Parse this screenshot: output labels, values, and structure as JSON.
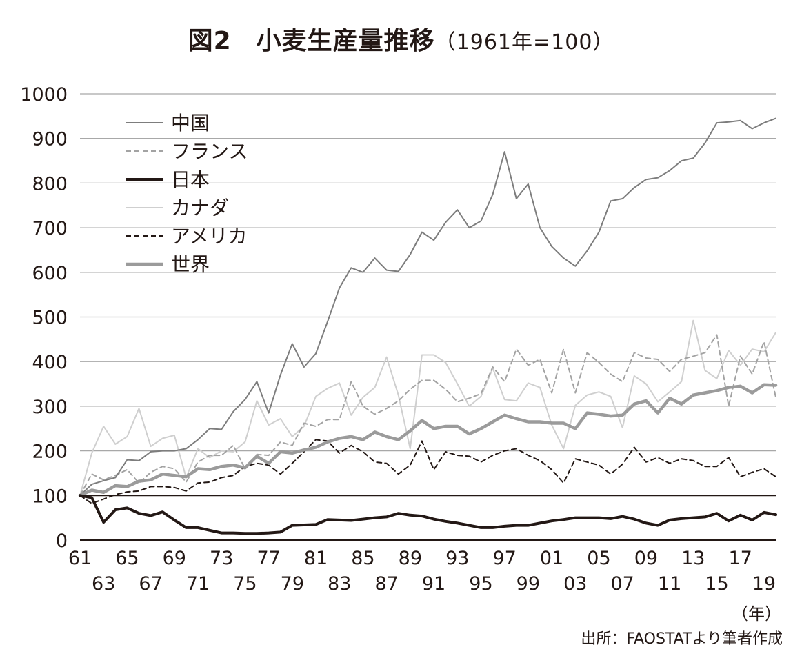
{
  "title": {
    "figure": "図2",
    "main": "小麦生産量推移",
    "sub": "（1961年=100）"
  },
  "unit_label": "（年）",
  "source": "出所：FAOSTATより筆者作成",
  "chart_data": {
    "type": "line",
    "title": "図2　小麦生産量推移（1961年=100）",
    "xlabel": "（年）",
    "ylabel": "",
    "ylim": [
      0,
      1000
    ],
    "yticks": [
      0,
      100,
      200,
      300,
      400,
      500,
      600,
      700,
      800,
      900,
      1000
    ],
    "xlim": [
      1961,
      2020
    ],
    "xticks_top": [
      "61",
      "65",
      "69",
      "73",
      "77",
      "81",
      "85",
      "89",
      "93",
      "97",
      "01",
      "05",
      "09",
      "13",
      "17"
    ],
    "xticks_bottom": [
      "63",
      "67",
      "71",
      "75",
      "79",
      "83",
      "87",
      "91",
      "95",
      "99",
      "03",
      "07",
      "11",
      "15",
      "19"
    ],
    "grid": "horizontal",
    "legend_position": "top-left",
    "x": [
      1961,
      1962,
      1963,
      1964,
      1965,
      1966,
      1967,
      1968,
      1969,
      1970,
      1971,
      1972,
      1973,
      1974,
      1975,
      1976,
      1977,
      1978,
      1979,
      1980,
      1981,
      1982,
      1983,
      1984,
      1985,
      1986,
      1987,
      1988,
      1989,
      1990,
      1991,
      1992,
      1993,
      1994,
      1995,
      1996,
      1997,
      1998,
      1999,
      2000,
      2001,
      2002,
      2003,
      2004,
      2005,
      2006,
      2007,
      2008,
      2009,
      2010,
      2011,
      2012,
      2013,
      2014,
      2015,
      2016,
      2017,
      2018,
      2019,
      2020
    ],
    "series": [
      {
        "name": "中国",
        "color": "#7d7d7d",
        "width": 2,
        "dash": "",
        "values": [
          100,
          125,
          133,
          140,
          180,
          178,
          198,
          200,
          200,
          205,
          225,
          250,
          248,
          288,
          315,
          355,
          285,
          370,
          440,
          388,
          418,
          490,
          565,
          610,
          600,
          632,
          605,
          602,
          640,
          690,
          672,
          712,
          740,
          700,
          715,
          775,
          870,
          765,
          798,
          700,
          658,
          632,
          614,
          648,
          690,
          760,
          765,
          790,
          808,
          812,
          828,
          850,
          856,
          890,
          935,
          937,
          940,
          922,
          935,
          945
        ]
      },
      {
        "name": "フランス",
        "color": "#a3a3a3",
        "width": 2,
        "dash": "7,5",
        "values": [
          100,
          148,
          135,
          145,
          158,
          128,
          152,
          165,
          160,
          130,
          175,
          190,
          190,
          212,
          160,
          192,
          190,
          220,
          212,
          262,
          255,
          270,
          270,
          355,
          300,
          282,
          295,
          312,
          338,
          358,
          358,
          338,
          310,
          318,
          328,
          388,
          355,
          428,
          392,
          405,
          330,
          428,
          330,
          420,
          398,
          372,
          355,
          420,
          408,
          405,
          378,
          405,
          412,
          420,
          460,
          300,
          412,
          372,
          445,
          320
        ]
      },
      {
        "name": "日本",
        "color": "#231815",
        "width": 4,
        "dash": "",
        "values": [
          100,
          95,
          40,
          68,
          72,
          60,
          55,
          63,
          45,
          28,
          28,
          22,
          16,
          16,
          15,
          15,
          16,
          18,
          33,
          34,
          35,
          46,
          45,
          44,
          47,
          50,
          52,
          60,
          56,
          54,
          47,
          42,
          38,
          33,
          28,
          28,
          31,
          33,
          33,
          38,
          43,
          46,
          50,
          50,
          50,
          48,
          53,
          47,
          38,
          33,
          45,
          48,
          50,
          52,
          60,
          43,
          56,
          45,
          62,
          57
        ]
      },
      {
        "name": "カナダ",
        "color": "#cfcfcf",
        "width": 2,
        "dash": "",
        "values": [
          100,
          195,
          255,
          215,
          232,
          295,
          210,
          228,
          235,
          140,
          205,
          185,
          200,
          198,
          220,
          312,
          258,
          272,
          232,
          255,
          322,
          340,
          352,
          280,
          320,
          342,
          410,
          325,
          205,
          415,
          415,
          398,
          350,
          300,
          322,
          385,
          315,
          312,
          352,
          342,
          258,
          205,
          302,
          325,
          332,
          322,
          252,
          368,
          350,
          310,
          332,
          355,
          492,
          380,
          362,
          425,
          392,
          428,
          422,
          465
        ]
      },
      {
        "name": "アメリカ",
        "color": "#231815",
        "width": 2,
        "dash": "7,5",
        "values": [
          100,
          82,
          92,
          102,
          108,
          110,
          120,
          120,
          118,
          110,
          128,
          130,
          140,
          145,
          165,
          172,
          168,
          148,
          172,
          198,
          225,
          222,
          195,
          212,
          198,
          175,
          172,
          148,
          168,
          222,
          158,
          198,
          190,
          188,
          175,
          190,
          200,
          205,
          190,
          178,
          158,
          128,
          182,
          175,
          168,
          148,
          170,
          208,
          175,
          185,
          172,
          182,
          178,
          165,
          165,
          185,
          142,
          152,
          160,
          142
        ]
      },
      {
        "name": "世界",
        "color": "#9b9b9b",
        "width": 4.5,
        "dash": "",
        "values": [
          100,
          112,
          107,
          122,
          120,
          132,
          135,
          148,
          145,
          142,
          160,
          158,
          165,
          168,
          162,
          188,
          172,
          198,
          195,
          202,
          208,
          220,
          228,
          232,
          225,
          242,
          232,
          225,
          245,
          268,
          250,
          255,
          255,
          238,
          250,
          265,
          280,
          272,
          265,
          265,
          262,
          262,
          250,
          285,
          282,
          278,
          280,
          305,
          312,
          285,
          318,
          305,
          325,
          330,
          335,
          342,
          345,
          330,
          348,
          347
        ]
      }
    ]
  }
}
